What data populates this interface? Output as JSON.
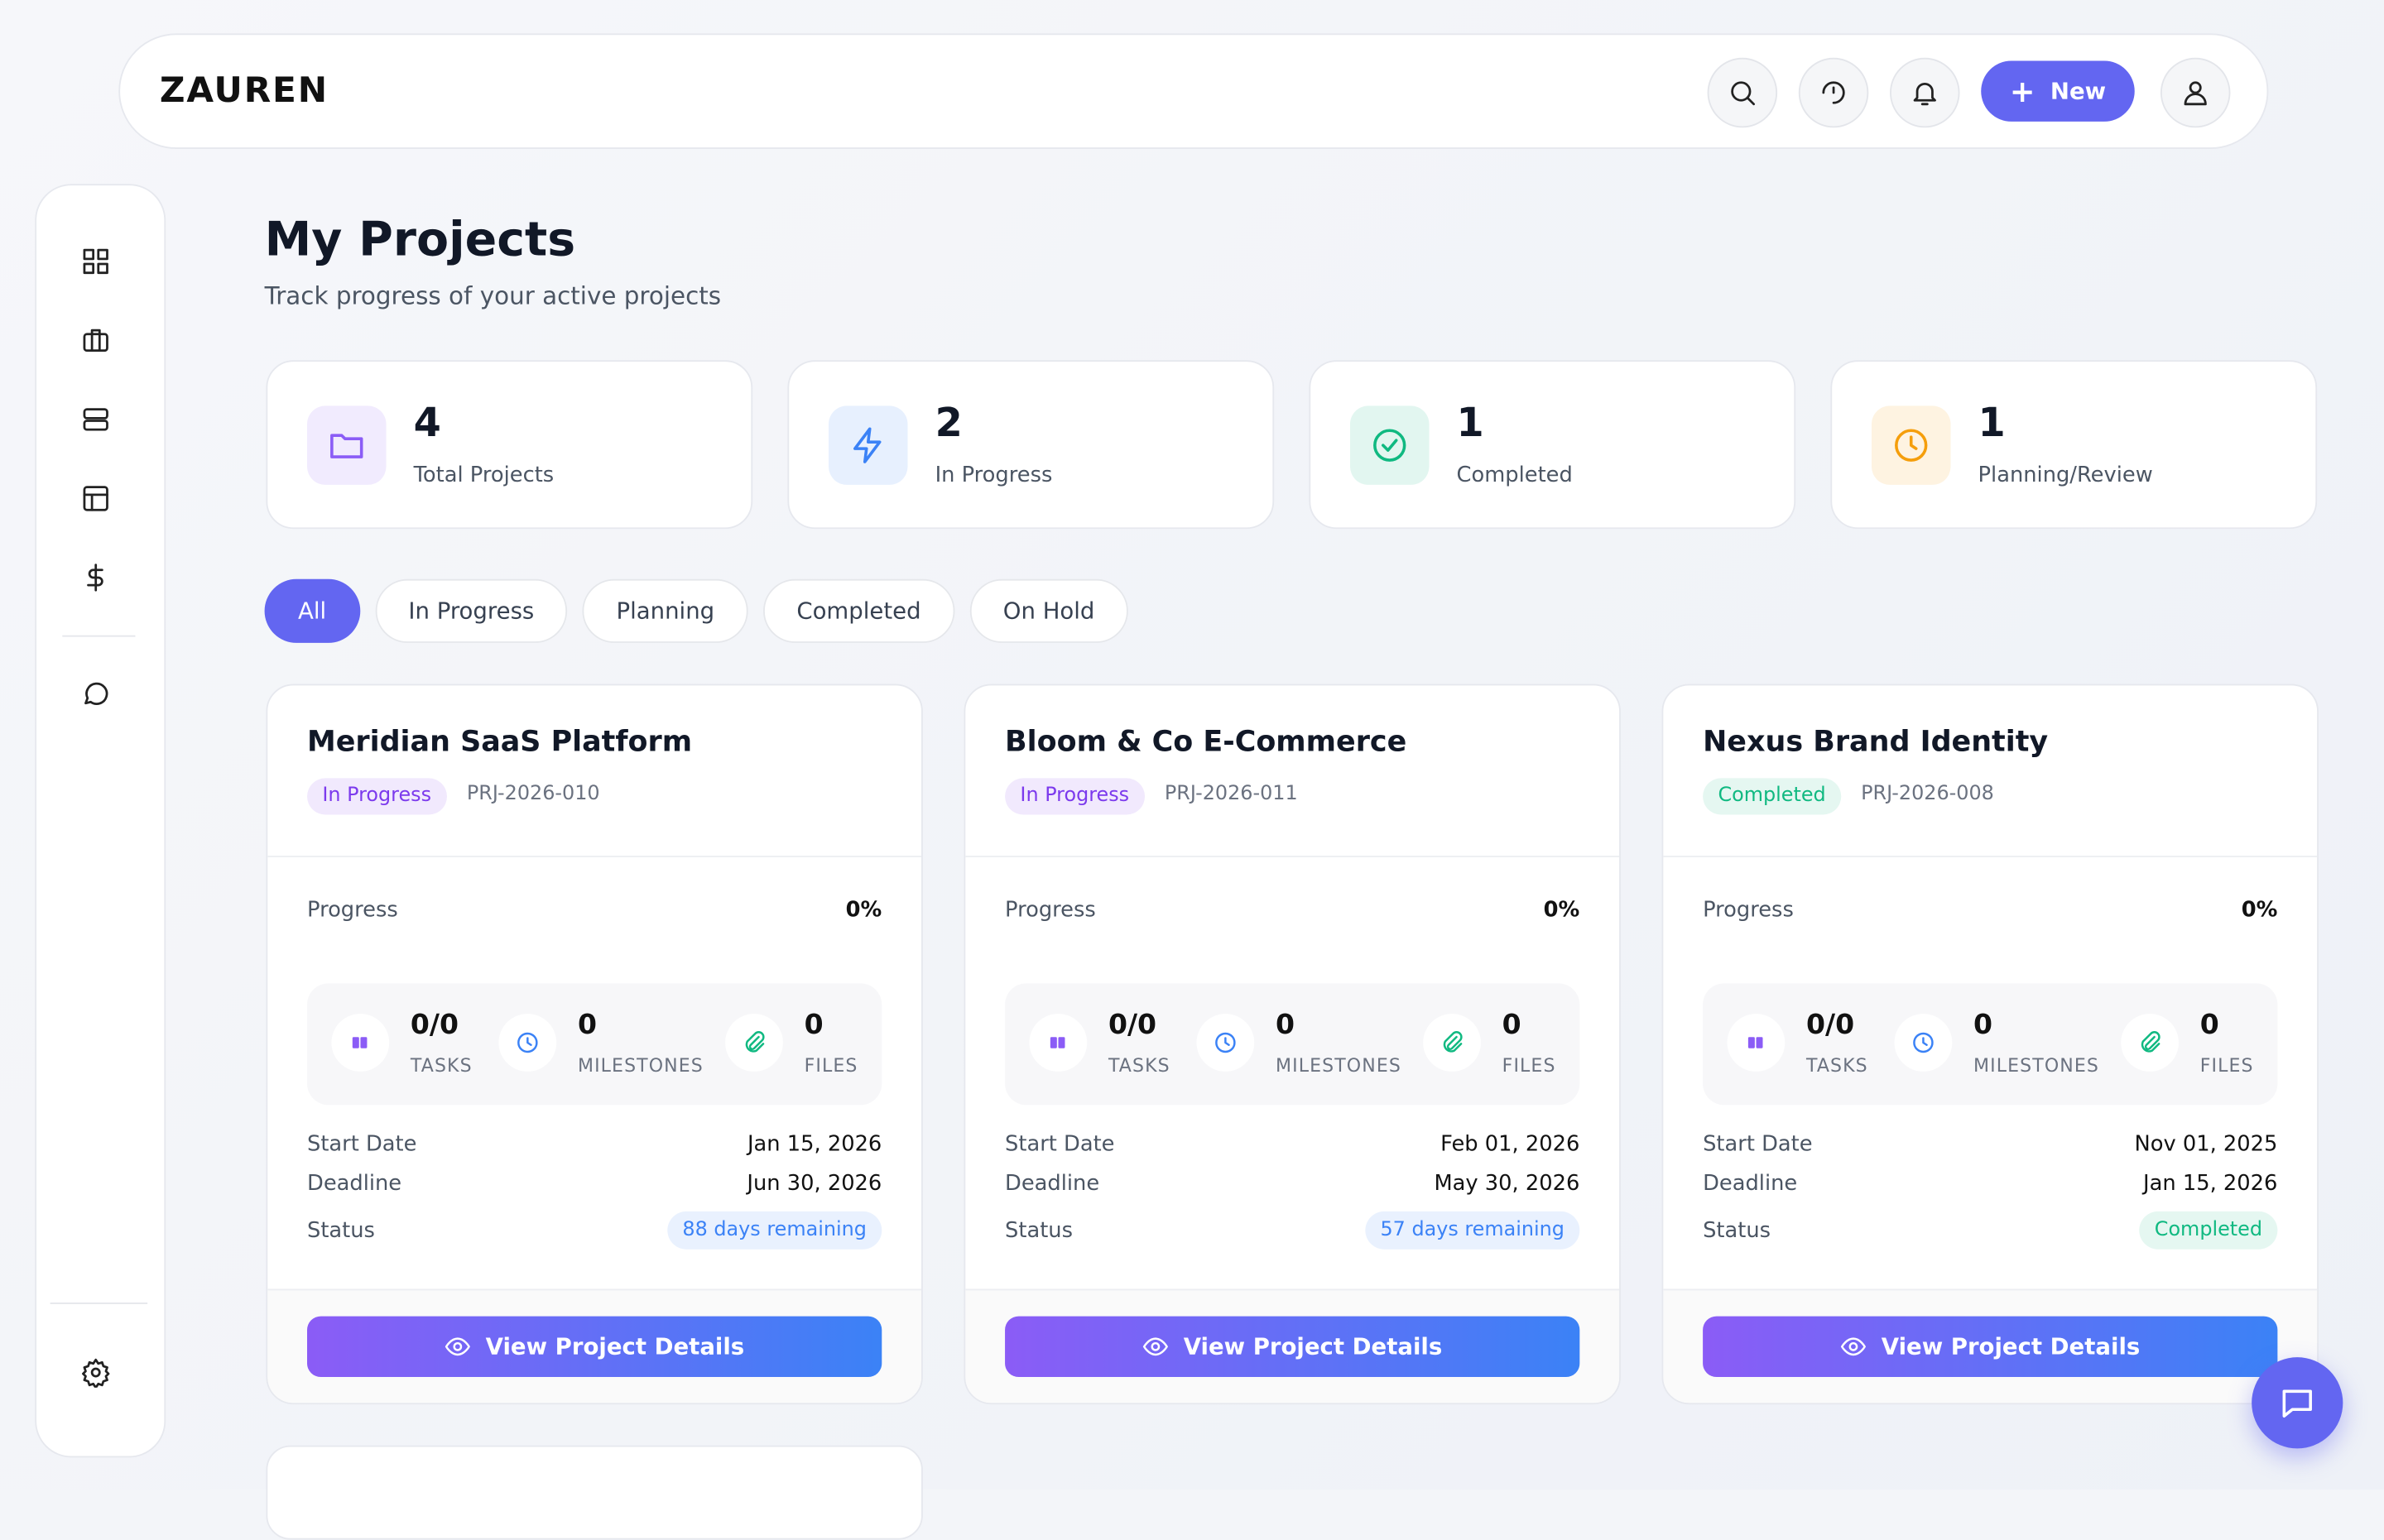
{
  "header": {
    "brand": "ZAUREN",
    "new_button": "New"
  },
  "page": {
    "title": "My Projects",
    "subtitle": "Track progress of your active projects"
  },
  "stats": [
    {
      "value": 4,
      "label": "Total Projects",
      "color": "#8b5cf6"
    },
    {
      "value": 2,
      "label": "In Progress",
      "color": "#3b82f6"
    },
    {
      "value": 1,
      "label": "Completed",
      "color": "#10b981"
    },
    {
      "value": 1,
      "label": "Planning/Review",
      "color": "#f59e0b"
    }
  ],
  "filters": [
    "All",
    "In Progress",
    "Planning",
    "Completed",
    "On Hold"
  ],
  "labels": {
    "progress": "Progress",
    "tasks": "TASKS",
    "milestones": "MILESTONES",
    "files": "FILES",
    "start": "Start Date",
    "deadline": "Deadline",
    "status": "Status",
    "button": "View Project Details"
  },
  "projects": [
    {
      "name": "Meridian SaaS Platform",
      "status": "In Progress",
      "status_color": "#7c3aed",
      "id": "PRJ-2026-010",
      "progress": "0%",
      "tasks": "0/0",
      "milestones": 0,
      "files": 0,
      "start": "Jan 15, 2026",
      "deadline": "Jun 30, 2026",
      "remaining": "88 days remaining",
      "remaining_color": "#3b82f6"
    },
    {
      "name": "Bloom & Co E-Commerce",
      "status": "In Progress",
      "status_color": "#7c3aed",
      "id": "PRJ-2026-011",
      "progress": "0%",
      "tasks": "0/0",
      "milestones": 0,
      "files": 0,
      "start": "Feb 01, 2026",
      "deadline": "May 30, 2026",
      "remaining": "57 days remaining",
      "remaining_color": "#3b82f6"
    },
    {
      "name": "Nexus Brand Identity",
      "status": "Completed",
      "status_color": "#10b981",
      "id": "PRJ-2026-008",
      "progress": "0%",
      "tasks": "0/0",
      "milestones": 0,
      "files": 0,
      "start": "Nov 01, 2025",
      "deadline": "Jan 15, 2026",
      "remaining": "Completed",
      "remaining_color": "#10b981"
    }
  ]
}
